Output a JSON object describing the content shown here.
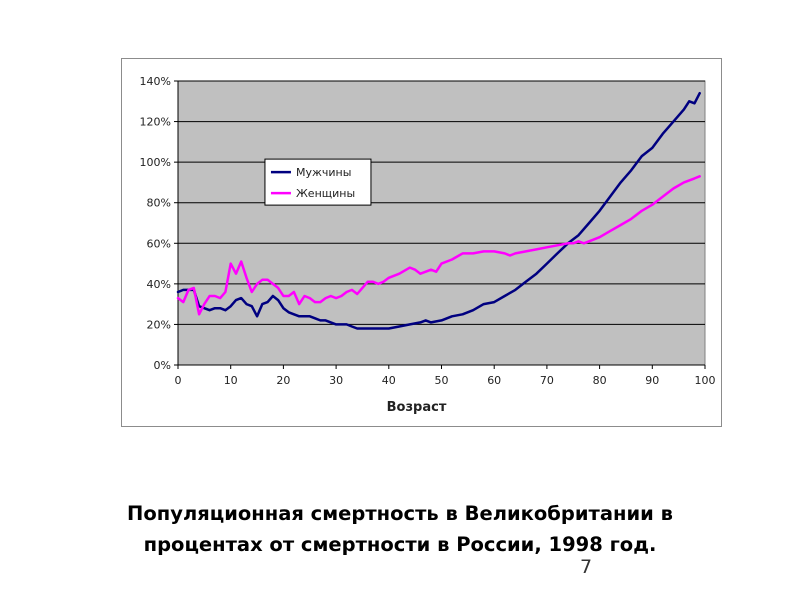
{
  "caption": {
    "line1": "Популяционная смертность в Великобритании в",
    "line2": "процентах от смертности в России, 1998 год."
  },
  "slide_number": "7",
  "chart_data": {
    "type": "line",
    "title": "",
    "xlabel": "Возраст",
    "ylabel": "",
    "xlim": [
      0,
      100
    ],
    "ylim": [
      0,
      140
    ],
    "x_ticks": [
      "0",
      "10",
      "20",
      "30",
      "40",
      "50",
      "60",
      "70",
      "80",
      "90",
      "100"
    ],
    "y_ticks": [
      "0%",
      "20%",
      "40%",
      "60%",
      "80%",
      "100%",
      "120%",
      "140%"
    ],
    "grid": "horizontal",
    "plot_background": "#c0c0c0",
    "legend": "upper-left inside plot",
    "series": [
      {
        "name": "Мужчины",
        "color": "#000080",
        "points": [
          [
            0,
            36
          ],
          [
            1,
            37
          ],
          [
            2,
            37
          ],
          [
            3,
            37
          ],
          [
            4,
            29
          ],
          [
            5,
            28
          ],
          [
            6,
            27
          ],
          [
            7,
            28
          ],
          [
            8,
            28
          ],
          [
            9,
            27
          ],
          [
            10,
            29
          ],
          [
            11,
            32
          ],
          [
            12,
            33
          ],
          [
            13,
            30
          ],
          [
            14,
            29
          ],
          [
            15,
            24
          ],
          [
            16,
            30
          ],
          [
            17,
            31
          ],
          [
            18,
            34
          ],
          [
            19,
            32
          ],
          [
            20,
            28
          ],
          [
            21,
            26
          ],
          [
            22,
            25
          ],
          [
            23,
            24
          ],
          [
            24,
            24
          ],
          [
            25,
            24
          ],
          [
            26,
            23
          ],
          [
            27,
            22
          ],
          [
            28,
            22
          ],
          [
            29,
            21
          ],
          [
            30,
            20
          ],
          [
            31,
            20
          ],
          [
            32,
            20
          ],
          [
            33,
            19
          ],
          [
            34,
            18
          ],
          [
            35,
            18
          ],
          [
            36,
            18
          ],
          [
            37,
            18
          ],
          [
            38,
            18
          ],
          [
            39,
            18
          ],
          [
            40,
            18
          ],
          [
            42,
            19
          ],
          [
            44,
            20
          ],
          [
            46,
            21
          ],
          [
            47,
            22
          ],
          [
            48,
            21
          ],
          [
            50,
            22
          ],
          [
            52,
            24
          ],
          [
            54,
            25
          ],
          [
            56,
            27
          ],
          [
            58,
            30
          ],
          [
            60,
            31
          ],
          [
            62,
            34
          ],
          [
            64,
            37
          ],
          [
            66,
            41
          ],
          [
            68,
            45
          ],
          [
            70,
            50
          ],
          [
            72,
            55
          ],
          [
            74,
            60
          ],
          [
            76,
            64
          ],
          [
            78,
            70
          ],
          [
            80,
            76
          ],
          [
            82,
            83
          ],
          [
            84,
            90
          ],
          [
            86,
            96
          ],
          [
            88,
            103
          ],
          [
            90,
            107
          ],
          [
            92,
            114
          ],
          [
            94,
            120
          ],
          [
            96,
            126
          ],
          [
            97,
            130
          ],
          [
            98,
            129
          ],
          [
            99,
            134
          ]
        ]
      },
      {
        "name": "Женщины",
        "color": "#ff00ff",
        "points": [
          [
            0,
            33
          ],
          [
            1,
            31
          ],
          [
            2,
            37
          ],
          [
            3,
            38
          ],
          [
            4,
            25
          ],
          [
            5,
            30
          ],
          [
            6,
            34
          ],
          [
            7,
            34
          ],
          [
            8,
            33
          ],
          [
            9,
            36
          ],
          [
            10,
            50
          ],
          [
            11,
            45
          ],
          [
            12,
            51
          ],
          [
            13,
            43
          ],
          [
            14,
            36
          ],
          [
            15,
            40
          ],
          [
            16,
            42
          ],
          [
            17,
            42
          ],
          [
            18,
            40
          ],
          [
            19,
            38
          ],
          [
            20,
            34
          ],
          [
            21,
            34
          ],
          [
            22,
            36
          ],
          [
            23,
            30
          ],
          [
            24,
            34
          ],
          [
            25,
            33
          ],
          [
            26,
            31
          ],
          [
            27,
            31
          ],
          [
            28,
            33
          ],
          [
            29,
            34
          ],
          [
            30,
            33
          ],
          [
            31,
            34
          ],
          [
            32,
            36
          ],
          [
            33,
            37
          ],
          [
            34,
            35
          ],
          [
            35,
            38
          ],
          [
            36,
            41
          ],
          [
            37,
            41
          ],
          [
            38,
            40
          ],
          [
            39,
            41
          ],
          [
            40,
            43
          ],
          [
            42,
            45
          ],
          [
            44,
            48
          ],
          [
            45,
            47
          ],
          [
            46,
            45
          ],
          [
            47,
            46
          ],
          [
            48,
            47
          ],
          [
            49,
            46
          ],
          [
            50,
            50
          ],
          [
            52,
            52
          ],
          [
            54,
            55
          ],
          [
            56,
            55
          ],
          [
            58,
            56
          ],
          [
            60,
            56
          ],
          [
            62,
            55
          ],
          [
            63,
            54
          ],
          [
            64,
            55
          ],
          [
            66,
            56
          ],
          [
            68,
            57
          ],
          [
            70,
            58
          ],
          [
            72,
            59
          ],
          [
            74,
            60
          ],
          [
            75,
            60
          ],
          [
            76,
            61
          ],
          [
            77,
            60
          ],
          [
            78,
            61
          ],
          [
            80,
            63
          ],
          [
            82,
            66
          ],
          [
            84,
            69
          ],
          [
            86,
            72
          ],
          [
            88,
            76
          ],
          [
            90,
            79
          ],
          [
            92,
            83
          ],
          [
            94,
            87
          ],
          [
            96,
            90
          ],
          [
            98,
            92
          ],
          [
            99,
            93
          ]
        ]
      }
    ]
  }
}
